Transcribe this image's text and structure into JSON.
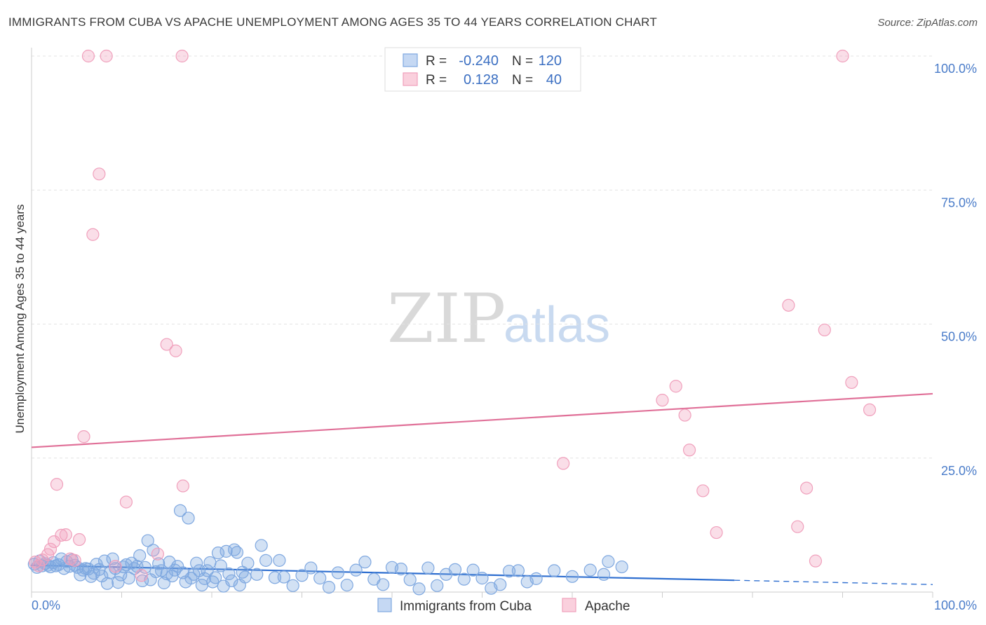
{
  "header": {
    "title": "IMMIGRANTS FROM CUBA VS APACHE UNEMPLOYMENT AMONG AGES 35 TO 44 YEARS CORRELATION CHART",
    "source": "Source: ZipAtlas.com"
  },
  "watermark": {
    "zip": "ZIP",
    "atlas": "atlas"
  },
  "legend": {
    "rows": [
      {
        "r_label": "R =",
        "r_value": "-0.240",
        "n_label": "N =",
        "n_value": "120",
        "color": "#7fa8e0"
      },
      {
        "r_label": "R =",
        "r_value": "0.128",
        "n_label": "N =",
        "n_value": "40",
        "color": "#f0a0bc"
      }
    ]
  },
  "chart_data": {
    "type": "scatter",
    "title": "IMMIGRANTS FROM CUBA VS APACHE UNEMPLOYMENT AMONG AGES 35 TO 44 YEARS CORRELATION CHART",
    "xlabel": "",
    "ylabel": "Unemployment Among Ages 35 to 44 years",
    "xlim": [
      0,
      100
    ],
    "ylim": [
      0,
      100
    ],
    "x_tick_labels": [
      "0.0%",
      "100.0%"
    ],
    "y_tick_labels": [
      {
        "value": 100,
        "label": "100.0%"
      },
      {
        "value": 75,
        "label": "75.0%"
      },
      {
        "value": 50,
        "label": "50.0%"
      },
      {
        "value": 25,
        "label": "25.0%"
      }
    ],
    "series": [
      {
        "name": "Immigrants from Cuba",
        "color": "#7fa8e0",
        "trend": {
          "x0": 0,
          "y0": 5.0,
          "x1": 78,
          "y1": 2.2,
          "dash_to_x": 100,
          "dash_to_y": 1.4
        },
        "points": [
          [
            0.3,
            5.2
          ],
          [
            0.6,
            4.6
          ],
          [
            0.9,
            5.8
          ],
          [
            1.2,
            4.9
          ],
          [
            1.5,
            5.3
          ],
          [
            1.8,
            5.0
          ],
          [
            2.1,
            4.7
          ],
          [
            2.4,
            5.5
          ],
          [
            2.7,
            4.9
          ],
          [
            3.0,
            5.1
          ],
          [
            3.3,
            6.2
          ],
          [
            3.6,
            4.4
          ],
          [
            3.9,
            5.7
          ],
          [
            4.2,
            4.8
          ],
          [
            4.5,
            6.0
          ],
          [
            4.8,
            5.0
          ],
          [
            5.1,
            4.6
          ],
          [
            5.4,
            3.2
          ],
          [
            5.7,
            4.1
          ],
          [
            6.0,
            4.4
          ],
          [
            6.3,
            4.3
          ],
          [
            6.6,
            2.9
          ],
          [
            6.9,
            3.5
          ],
          [
            7.2,
            5.2
          ],
          [
            7.5,
            4.2
          ],
          [
            7.8,
            3.0
          ],
          [
            8.1,
            5.8
          ],
          [
            8.4,
            1.6
          ],
          [
            8.7,
            3.6
          ],
          [
            9.0,
            6.2
          ],
          [
            9.3,
            4.4
          ],
          [
            9.6,
            1.8
          ],
          [
            9.9,
            3.2
          ],
          [
            10.2,
            4.7
          ],
          [
            10.5,
            5.1
          ],
          [
            10.8,
            2.6
          ],
          [
            11.1,
            5.4
          ],
          [
            11.4,
            4.4
          ],
          [
            11.7,
            4.8
          ],
          [
            12.0,
            6.8
          ],
          [
            12.3,
            2.1
          ],
          [
            12.6,
            4.6
          ],
          [
            12.9,
            9.6
          ],
          [
            13.2,
            2.3
          ],
          [
            13.5,
            7.8
          ],
          [
            13.8,
            3.8
          ],
          [
            14.1,
            5.3
          ],
          [
            14.4,
            4.0
          ],
          [
            14.7,
            1.7
          ],
          [
            15.0,
            3.4
          ],
          [
            15.3,
            5.6
          ],
          [
            15.6,
            3.0
          ],
          [
            15.9,
            4.1
          ],
          [
            16.2,
            4.8
          ],
          [
            16.5,
            15.2
          ],
          [
            16.8,
            3.6
          ],
          [
            17.1,
            1.9
          ],
          [
            17.4,
            13.8
          ],
          [
            17.7,
            2.6
          ],
          [
            18.0,
            3.3
          ],
          [
            18.3,
            5.4
          ],
          [
            18.6,
            4.0
          ],
          [
            18.9,
            1.3
          ],
          [
            19.2,
            2.5
          ],
          [
            19.5,
            4.0
          ],
          [
            19.8,
            5.5
          ],
          [
            20.1,
            1.9
          ],
          [
            20.4,
            2.7
          ],
          [
            20.7,
            7.3
          ],
          [
            21.0,
            4.9
          ],
          [
            21.3,
            1.1
          ],
          [
            21.6,
            7.6
          ],
          [
            21.9,
            3.4
          ],
          [
            22.2,
            2.1
          ],
          [
            22.5,
            7.9
          ],
          [
            22.8,
            7.4
          ],
          [
            23.1,
            1.3
          ],
          [
            23.4,
            3.7
          ],
          [
            23.7,
            2.8
          ],
          [
            24.0,
            5.4
          ],
          [
            25.0,
            3.3
          ],
          [
            25.5,
            8.7
          ],
          [
            26.0,
            5.9
          ],
          [
            27.0,
            2.7
          ],
          [
            27.5,
            5.9
          ],
          [
            28.0,
            2.8
          ],
          [
            29.0,
            1.2
          ],
          [
            30.0,
            3.1
          ],
          [
            31.0,
            4.5
          ],
          [
            32.0,
            2.6
          ],
          [
            33.0,
            0.9
          ],
          [
            34.0,
            3.6
          ],
          [
            35.0,
            1.3
          ],
          [
            36.0,
            4.1
          ],
          [
            37.0,
            5.6
          ],
          [
            38.0,
            2.4
          ],
          [
            39.0,
            1.4
          ],
          [
            40.0,
            4.6
          ],
          [
            41.0,
            4.3
          ],
          [
            42.0,
            2.3
          ],
          [
            43.0,
            0.6
          ],
          [
            44.0,
            4.5
          ],
          [
            45.0,
            1.2
          ],
          [
            46.0,
            3.3
          ],
          [
            47.0,
            4.2
          ],
          [
            48.0,
            2.4
          ],
          [
            49.0,
            4.1
          ],
          [
            50.0,
            2.6
          ],
          [
            51.0,
            0.7
          ],
          [
            52.0,
            1.4
          ],
          [
            53.0,
            3.9
          ],
          [
            54.0,
            4.0
          ],
          [
            55.0,
            1.9
          ],
          [
            56.0,
            2.5
          ],
          [
            58.0,
            4.0
          ],
          [
            60.0,
            2.9
          ],
          [
            62.0,
            4.1
          ],
          [
            63.5,
            3.3
          ],
          [
            64.0,
            5.7
          ],
          [
            65.5,
            4.7
          ]
        ]
      },
      {
        "name": "Apache",
        "color": "#f0a0bc",
        "trend": {
          "x0": 0,
          "y0": 27.0,
          "x1": 100,
          "y1": 37.0
        },
        "points": [
          [
            0.4,
            5.6
          ],
          [
            0.8,
            4.9
          ],
          [
            1.2,
            6.0
          ],
          [
            1.8,
            7.0
          ],
          [
            2.1,
            8.0
          ],
          [
            2.5,
            9.4
          ],
          [
            2.8,
            20.1
          ],
          [
            3.3,
            10.6
          ],
          [
            3.8,
            10.7
          ],
          [
            4.3,
            6.2
          ],
          [
            4.8,
            5.9
          ],
          [
            5.3,
            9.8
          ],
          [
            5.8,
            29.0
          ],
          [
            6.3,
            100.0
          ],
          [
            6.8,
            66.7
          ],
          [
            7.5,
            78.0
          ],
          [
            8.3,
            100.0
          ],
          [
            9.3,
            4.8
          ],
          [
            10.5,
            16.8
          ],
          [
            12.2,
            3.1
          ],
          [
            14.0,
            7.1
          ],
          [
            15.0,
            46.2
          ],
          [
            16.0,
            45.0
          ],
          [
            16.7,
            100.0
          ],
          [
            16.8,
            19.8
          ],
          [
            59.0,
            24.0
          ],
          [
            70.0,
            35.8
          ],
          [
            71.5,
            38.4
          ],
          [
            72.5,
            33.0
          ],
          [
            73.0,
            26.5
          ],
          [
            74.5,
            18.9
          ],
          [
            76.0,
            11.1
          ],
          [
            84.0,
            53.5
          ],
          [
            85.0,
            12.2
          ],
          [
            86.0,
            19.4
          ],
          [
            87.0,
            5.8
          ],
          [
            88.0,
            48.9
          ],
          [
            90.0,
            100.0
          ],
          [
            91.0,
            39.1
          ],
          [
            93.0,
            34.0
          ]
        ]
      }
    ]
  },
  "bottom_legend": {
    "items": [
      {
        "label": "Immigrants from Cuba",
        "color": "#7fa8e0"
      },
      {
        "label": "Apache",
        "color": "#f0a0bc"
      }
    ]
  }
}
